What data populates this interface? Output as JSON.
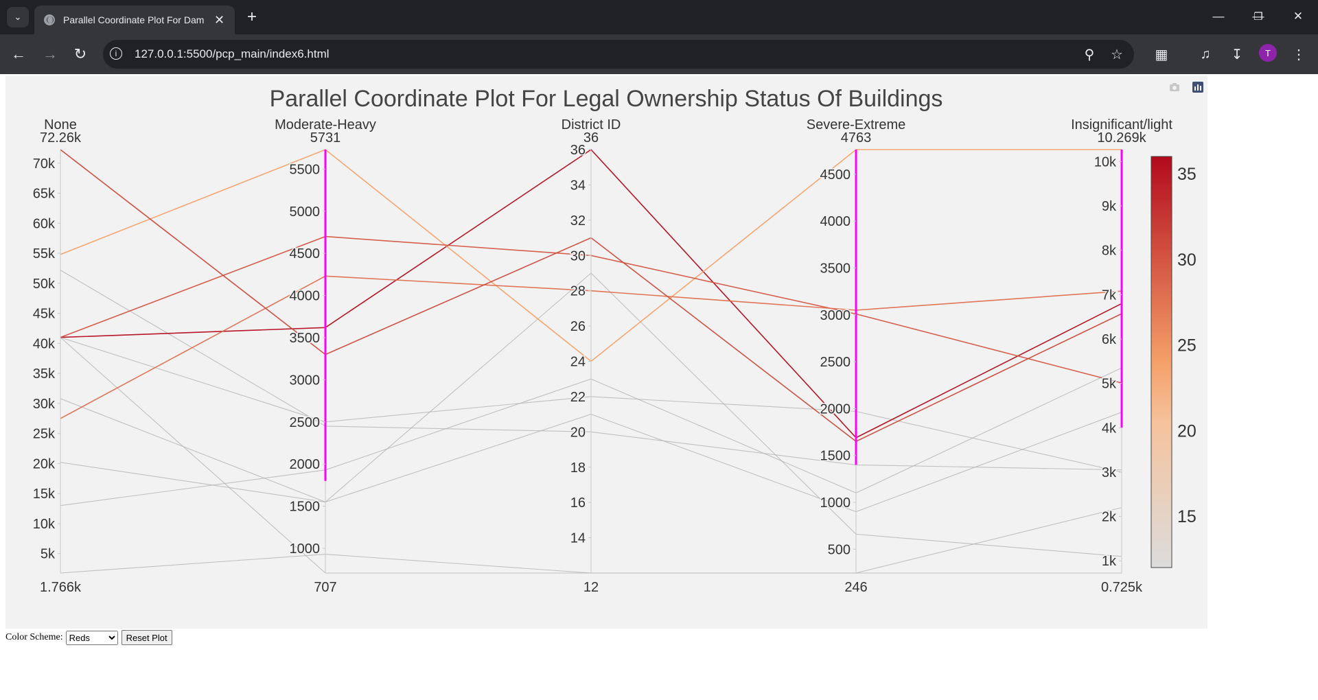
{
  "browser": {
    "tab_title": "Parallel Coordinate Plot For Dam",
    "url": "127.0.0.1:5500/pcp_main/index6.html",
    "avatar_letter": "T"
  },
  "controls": {
    "color_scheme_label": "Color Scheme:",
    "color_scheme_selected": "Reds",
    "reset_label": "Reset Plot"
  },
  "chart_data": {
    "type": "parallel_coordinates",
    "title": "Parallel Coordinate Plot For Legal Ownership Status Of Buildings",
    "color_by": "District ID",
    "colorscale": "Reds",
    "colorbar": {
      "range": [
        12,
        36
      ],
      "ticks": [
        "15",
        "20",
        "25",
        "30",
        "35"
      ]
    },
    "axes": [
      {
        "label": "None",
        "range": [
          1766,
          72260
        ],
        "min_label": "1.766k",
        "max_label": "72.26k",
        "ticks": [
          5000,
          10000,
          15000,
          20000,
          25000,
          30000,
          35000,
          40000,
          45000,
          50000,
          55000,
          60000,
          65000,
          70000
        ],
        "tick_labels": [
          "5k",
          "10k",
          "15k",
          "20k",
          "25k",
          "30k",
          "35k",
          "40k",
          "45k",
          "50k",
          "55k",
          "60k",
          "65k",
          "70k"
        ],
        "constraint": null
      },
      {
        "label": "Moderate-Heavy",
        "range": [
          707,
          5731
        ],
        "min_label": "707",
        "max_label": "5731",
        "ticks": [
          1000,
          1500,
          2000,
          2500,
          3000,
          3500,
          4000,
          4500,
          5000,
          5500
        ],
        "tick_labels": [
          "1000",
          "1500",
          "2000",
          "2500",
          "3000",
          "3500",
          "4000",
          "4500",
          "5000",
          "5500"
        ],
        "constraint": [
          1800,
          5731
        ]
      },
      {
        "label": "District ID",
        "range": [
          12,
          36
        ],
        "min_label": "12",
        "max_label": "36",
        "ticks": [
          14,
          16,
          18,
          20,
          22,
          24,
          26,
          28,
          30,
          32,
          34,
          36
        ],
        "tick_labels": [
          "14",
          "16",
          "18",
          "20",
          "22",
          "24",
          "26",
          "28",
          "30",
          "32",
          "34",
          "36"
        ],
        "constraint": null
      },
      {
        "label": "Severe-Extreme",
        "range": [
          246,
          4763
        ],
        "min_label": "246",
        "max_label": "4763",
        "ticks": [
          500,
          1000,
          1500,
          2000,
          2500,
          3000,
          3500,
          4000,
          4500
        ],
        "tick_labels": [
          "500",
          "1000",
          "1500",
          "2000",
          "2500",
          "3000",
          "3500",
          "4000",
          "4500"
        ],
        "constraint": [
          1400,
          4763
        ]
      },
      {
        "label": "Insignificant/light",
        "range": [
          725,
          10269
        ],
        "min_label": "0.725k",
        "max_label": "10.269k",
        "ticks": [
          1000,
          2000,
          3000,
          4000,
          5000,
          6000,
          7000,
          8000,
          9000,
          10000
        ],
        "tick_labels": [
          "1k",
          "2k",
          "3k",
          "4k",
          "5k",
          "6k",
          "7k",
          "8k",
          "9k",
          "10k"
        ],
        "constraint": [
          4000,
          10269
        ]
      }
    ],
    "lines": [
      [
        41000,
        3620,
        36,
        1690,
        6800
      ],
      [
        54800,
        5731,
        24,
        4763,
        10269
      ],
      [
        41000,
        4700,
        30,
        3010,
        5010
      ],
      [
        27500,
        4230,
        28,
        3050,
        7080
      ],
      [
        72260,
        3300,
        31,
        1650,
        6570
      ],
      [
        41000,
        2500,
        22,
        1970,
        3000
      ],
      [
        52200,
        2450,
        20,
        1400,
        3050
      ],
      [
        13000,
        1930,
        23,
        1100,
        5350
      ],
      [
        30800,
        1550,
        21,
        900,
        4350
      ],
      [
        20200,
        1550,
        29,
        660,
        1100
      ],
      [
        1766,
        930,
        12,
        246,
        2200
      ],
      [
        41000,
        707,
        12,
        246,
        725
      ]
    ]
  }
}
